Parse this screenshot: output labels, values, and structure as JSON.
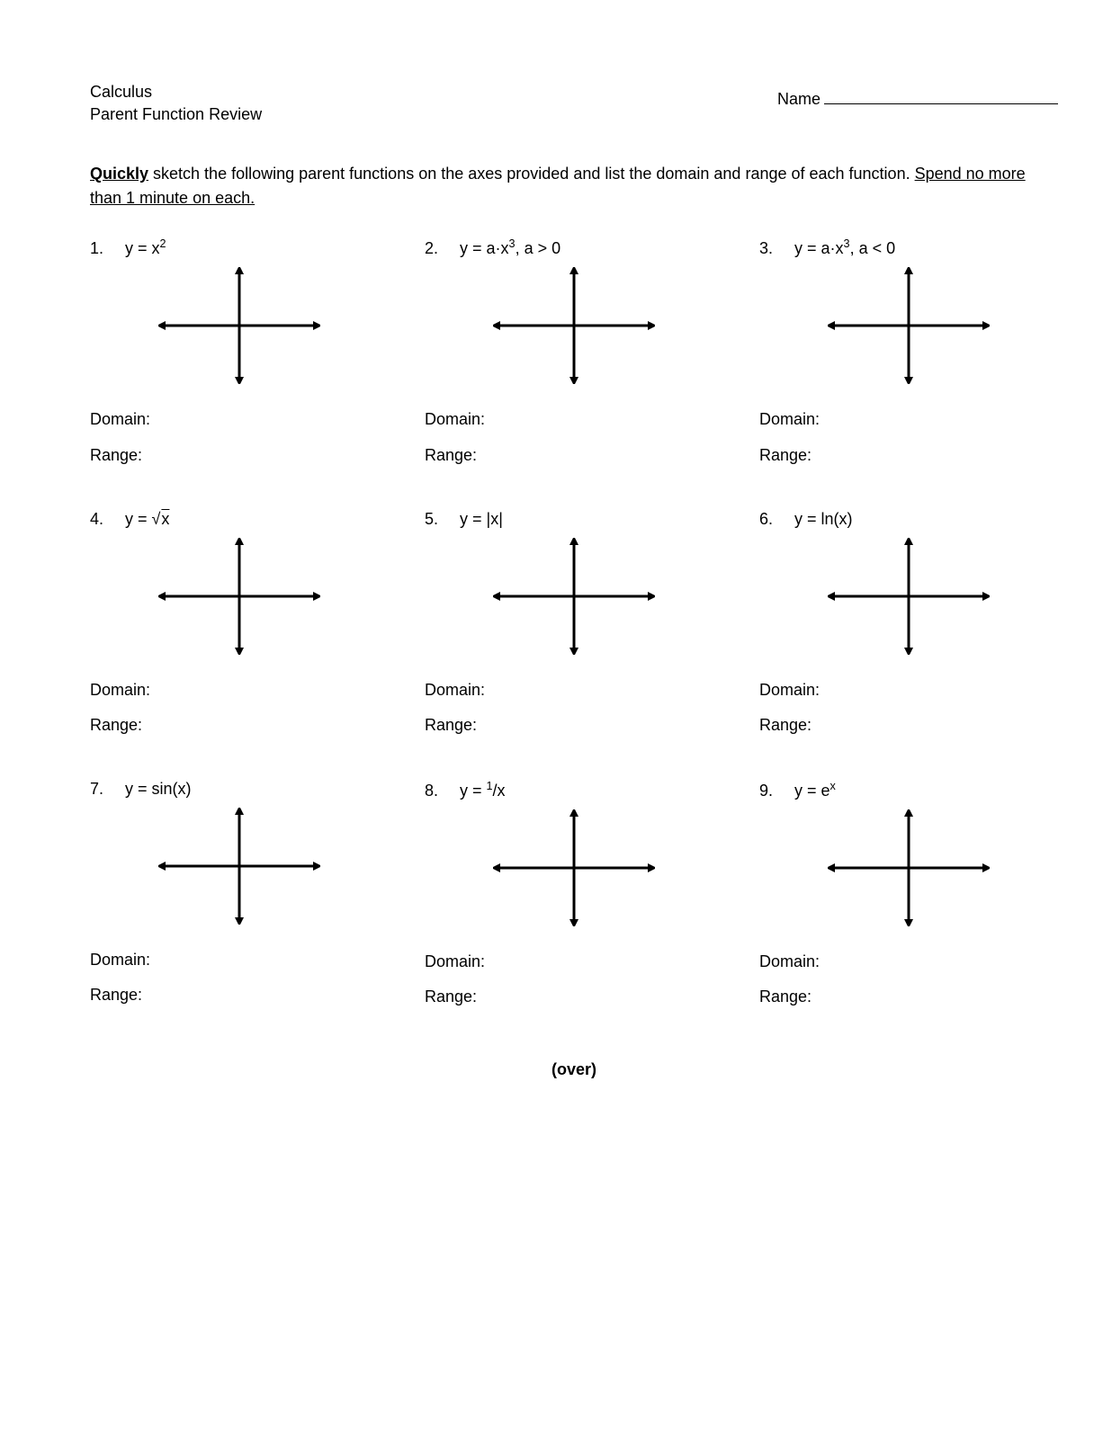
{
  "header": {
    "course": "Calculus",
    "subtitle": "Parent Function Review",
    "name_label": "Name"
  },
  "instructions": {
    "quickly": "Quickly",
    "text_mid": " sketch the following parent functions on the axes provided and list the domain and range of each function. ",
    "underline_text": "Spend no more than 1 minute on each."
  },
  "labels": {
    "domain": "Domain:",
    "range": "Range:"
  },
  "problems": [
    {
      "num": "1.",
      "fn_plain": "y = x",
      "sup": "2",
      "tail": ""
    },
    {
      "num": "2.",
      "fn_plain": "y = a·x",
      "sup": "3",
      "tail": ", a > 0"
    },
    {
      "num": "3.",
      "fn_plain": "y = a·x",
      "sup": "3",
      "tail": ", a < 0"
    },
    {
      "num": "4.",
      "fn_pre": "y = √",
      "sqrt_content": "x"
    },
    {
      "num": "5.",
      "fn_plain": "y = |x|"
    },
    {
      "num": "6.",
      "fn_plain": "y = ln(x)"
    },
    {
      "num": "7.",
      "fn_plain": "y = sin(x)"
    },
    {
      "num": "8.",
      "fn_pre": "y = ",
      "frac_sup": "1",
      "frac_rest": "/x"
    },
    {
      "num": "9.",
      "fn_plain": "y = e",
      "sup": "x",
      "tail": ""
    }
  ],
  "footer": "(over)",
  "axes": {
    "width": 180,
    "height": 130,
    "stroke": "#000000",
    "stroke_width": 3,
    "arrow_size": 10
  }
}
